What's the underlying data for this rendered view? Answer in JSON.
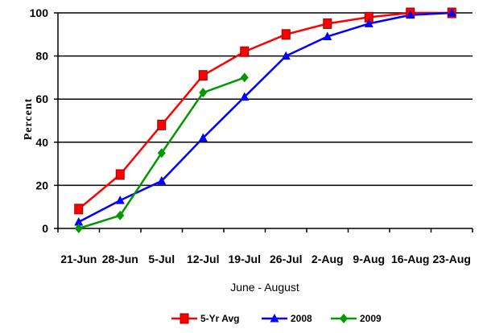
{
  "chart_data": {
    "type": "line",
    "categories": [
      "21-Jun",
      "28-Jun",
      "5-Jul",
      "12-Jul",
      "19-Jul",
      "26-Jul",
      "2-Aug",
      "9-Aug",
      "16-Aug",
      "23-Aug"
    ],
    "xlabel": "June - August",
    "ylabel": "Percent",
    "ylim": [
      0,
      100
    ],
    "yticks": [
      0,
      20,
      40,
      60,
      80,
      100
    ],
    "grid": true,
    "legend_position": "bottom",
    "series": [
      {
        "name": "5-Yr Avg",
        "color": "#ff0000",
        "marker": "square",
        "values": [
          9,
          25,
          48,
          71,
          82,
          90,
          95,
          98,
          100,
          100
        ]
      },
      {
        "name": "2008",
        "color": "#0000ff",
        "marker": "triangle",
        "values": [
          3,
          13,
          22,
          42,
          61,
          80,
          89,
          95,
          99,
          100
        ]
      },
      {
        "name": "2009",
        "color": "#009900",
        "marker": "diamond",
        "values": [
          0,
          6,
          35,
          63,
          70,
          null,
          null,
          null,
          null,
          null
        ]
      }
    ]
  }
}
